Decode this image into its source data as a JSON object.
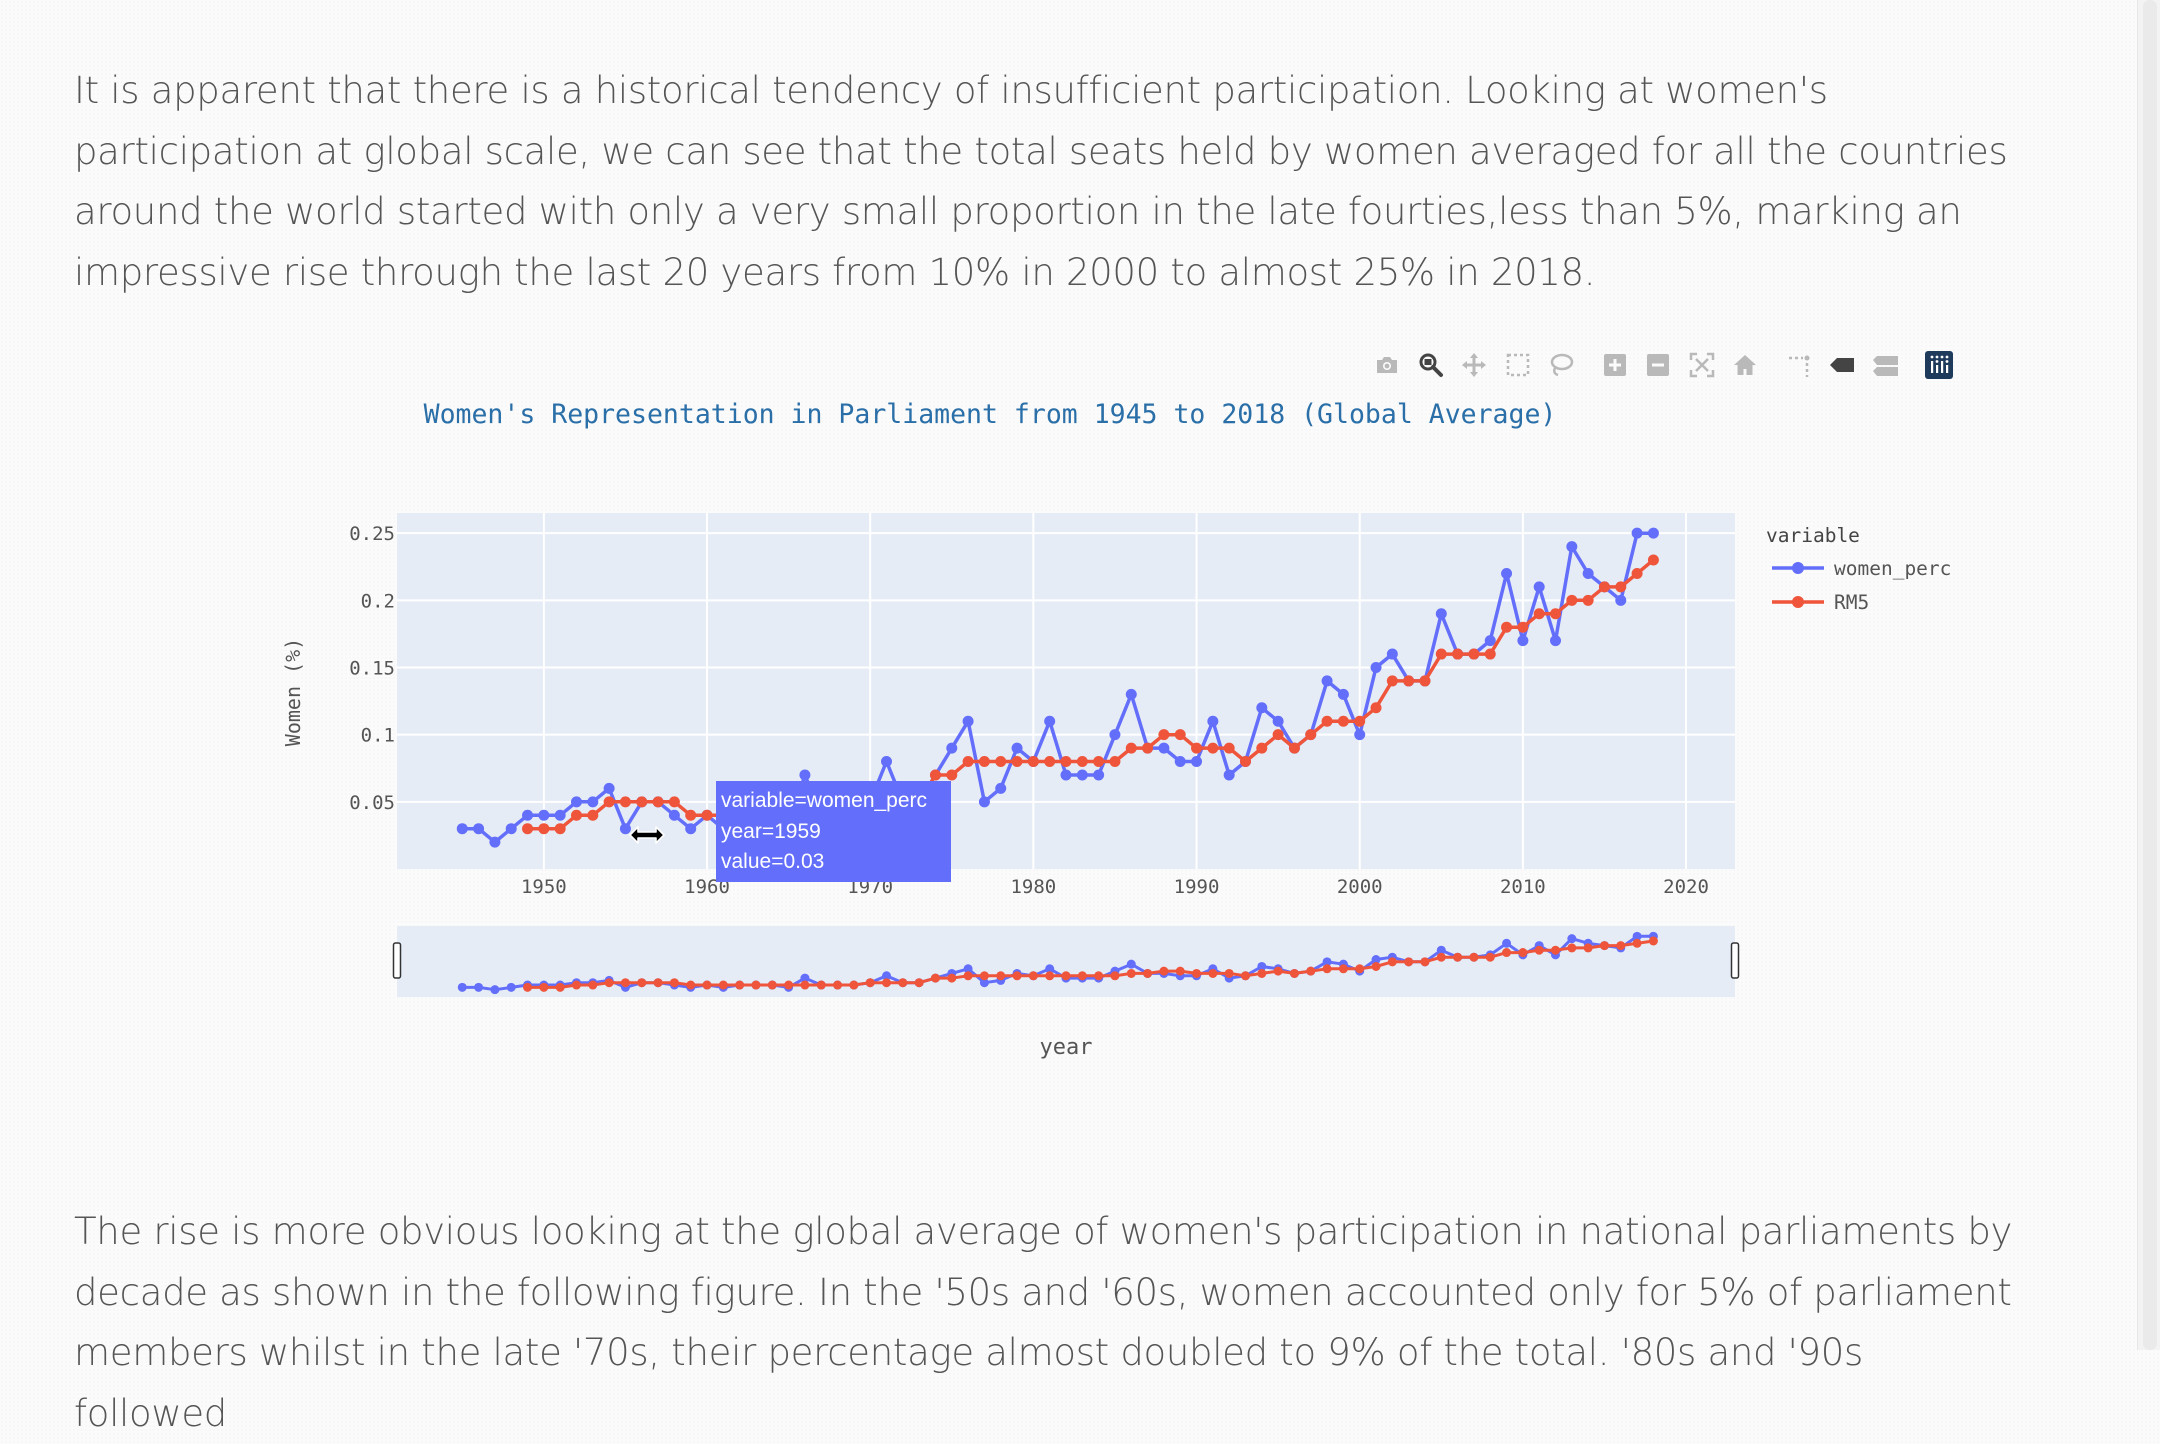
{
  "article": {
    "paragraph_top": "It is apparent that there is a historical tendency of insufficient participation. Looking at women's participation at global scale, we can see that the total seats held by women averaged for all the countries around the world started with only a very small proportion in the late fourties,less than 5%, marking an impressive rise through the last 20 years from 10% in 2000 to almost 25% in 2018.",
    "paragraph_bottom": "The rise is more obvious looking at the global average of women's participation in national parliaments by decade as shown in the following figure. In the '50s and '60s, women accounted only for 5% of parliament members whilst in the late '70s, their percentage almost doubled to 9% of the total. '80s and '90s followed"
  },
  "modebar": {
    "icons": [
      "camera-icon",
      "zoom-icon",
      "pan-icon",
      "box-select-icon",
      "lasso-icon",
      "zoom-in-icon",
      "zoom-out-icon",
      "autoscale-icon",
      "reset-axes-icon",
      "spike-lines-icon",
      "hover-closest-icon",
      "hover-compare-icon",
      "plotly-logo-icon"
    ],
    "active": "zoom-icon"
  },
  "chart_data": {
    "type": "line",
    "title": "Women's Representation in Parliament from 1945 to 2018 (Global Average)",
    "xlabel": "year",
    "ylabel": "Women (%)",
    "xlim": [
      1941,
      2023
    ],
    "ylim": [
      0,
      0.265
    ],
    "xticks": [
      1950,
      1960,
      1970,
      1980,
      1990,
      2000,
      2010,
      2020
    ],
    "yticks": [
      0.05,
      0.1,
      0.15,
      0.2,
      0.25
    ],
    "grid": true,
    "range_slider": true,
    "legend": {
      "title": "variable",
      "placement": "right"
    },
    "colors": {
      "women_perc": "#636efa",
      "RM5": "#ef553b",
      "plot_bg": "#e5ecf6",
      "title": "#2a6fa8"
    },
    "x": [
      1945,
      1946,
      1947,
      1948,
      1949,
      1950,
      1951,
      1952,
      1953,
      1954,
      1955,
      1956,
      1957,
      1958,
      1959,
      1960,
      1961,
      1962,
      1963,
      1964,
      1965,
      1966,
      1967,
      1968,
      1969,
      1970,
      1971,
      1972,
      1973,
      1974,
      1975,
      1976,
      1977,
      1978,
      1979,
      1980,
      1981,
      1982,
      1983,
      1984,
      1985,
      1986,
      1987,
      1988,
      1989,
      1990,
      1991,
      1992,
      1993,
      1994,
      1995,
      1996,
      1997,
      1998,
      1999,
      2000,
      2001,
      2002,
      2003,
      2004,
      2005,
      2006,
      2007,
      2008,
      2009,
      2010,
      2011,
      2012,
      2013,
      2014,
      2015,
      2016,
      2017,
      2018
    ],
    "series": [
      {
        "name": "women_perc",
        "values": [
          0.03,
          0.03,
          0.02,
          0.03,
          0.04,
          0.04,
          0.04,
          0.05,
          0.05,
          0.06,
          0.03,
          0.05,
          0.05,
          0.04,
          0.03,
          0.04,
          0.03,
          0.04,
          0.04,
          0.04,
          0.03,
          0.07,
          0.04,
          0.04,
          0.04,
          0.05,
          0.08,
          0.05,
          0.05,
          0.07,
          0.09,
          0.11,
          0.05,
          0.06,
          0.09,
          0.08,
          0.11,
          0.07,
          0.07,
          0.07,
          0.1,
          0.13,
          0.09,
          0.09,
          0.08,
          0.08,
          0.11,
          0.07,
          0.08,
          0.12,
          0.11,
          0.09,
          0.1,
          0.14,
          0.13,
          0.1,
          0.15,
          0.16,
          0.14,
          0.14,
          0.19,
          0.16,
          0.16,
          0.17,
          0.22,
          0.17,
          0.21,
          0.17,
          0.24,
          0.22,
          0.21,
          0.2,
          0.25,
          0.25
        ]
      },
      {
        "name": "RM5",
        "values": [
          null,
          null,
          null,
          null,
          0.03,
          0.03,
          0.03,
          0.04,
          0.04,
          0.05,
          0.05,
          0.05,
          0.05,
          0.05,
          0.04,
          0.04,
          0.04,
          0.04,
          0.04,
          0.04,
          0.04,
          0.04,
          0.04,
          0.04,
          0.04,
          0.05,
          0.05,
          0.05,
          0.05,
          0.07,
          0.07,
          0.08,
          0.08,
          0.08,
          0.08,
          0.08,
          0.08,
          0.08,
          0.08,
          0.08,
          0.08,
          0.09,
          0.09,
          0.1,
          0.1,
          0.09,
          0.09,
          0.09,
          0.08,
          0.09,
          0.1,
          0.09,
          0.1,
          0.11,
          0.11,
          0.11,
          0.12,
          0.14,
          0.14,
          0.14,
          0.16,
          0.16,
          0.16,
          0.16,
          0.18,
          0.18,
          0.19,
          0.19,
          0.2,
          0.2,
          0.21,
          0.21,
          0.22,
          0.23
        ]
      }
    ],
    "hover": {
      "lines": [
        "variable=women_perc",
        "year=1959",
        "value=0.03"
      ]
    }
  }
}
